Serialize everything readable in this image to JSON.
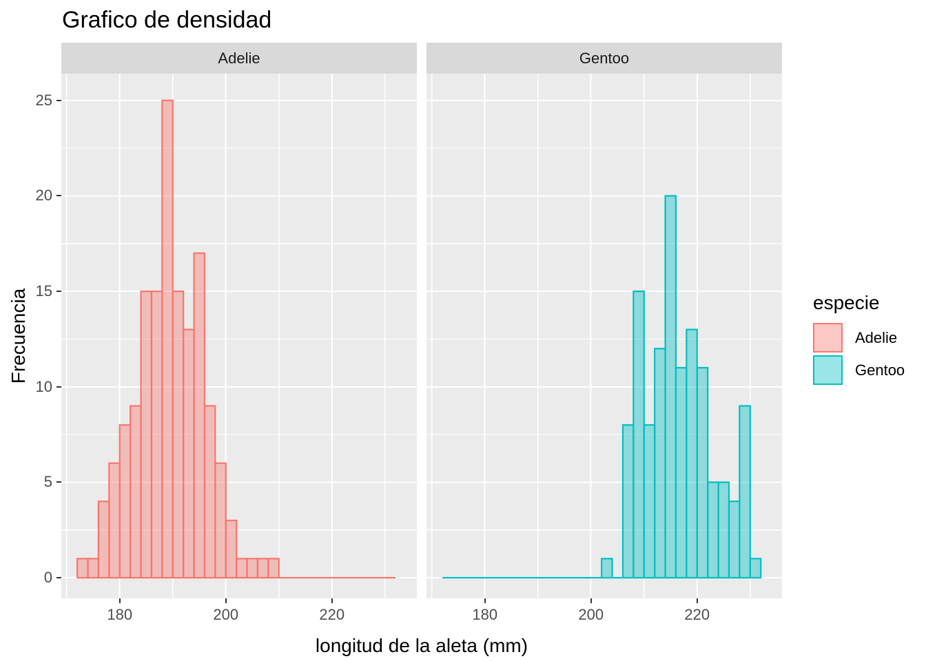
{
  "title": "Grafico de densidad",
  "axes": {
    "x": {
      "title": "longitud de la aleta (mm)"
    },
    "y": {
      "title": "Frecuencia"
    }
  },
  "legend": {
    "title": "especie",
    "entries": [
      {
        "label": "Adelie",
        "stroke": "#F8766D",
        "fill": "rgba(248,118,109,0.4)"
      },
      {
        "label": "Gentoo",
        "stroke": "#00BFC4",
        "fill": "rgba(0,191,196,0.4)"
      }
    ]
  },
  "colors": {
    "panel_bg": "#EBEBEB",
    "strip_bg": "#D9D9D9",
    "gridline": "#FFFFFF",
    "tick_mark": "#333333",
    "tick_label": "#4D4D4D",
    "adelie_stroke": "#F8766D",
    "adelie_fill": "rgba(248,118,109,0.4)",
    "gentoo_stroke": "#00BFC4",
    "gentoo_fill": "rgba(0,191,196,0.4)"
  },
  "chart_data": {
    "type": "bar",
    "subtype": "faceted-histogram",
    "title": "Grafico de densidad",
    "xlabel": "longitud de la aleta (mm)",
    "ylabel": "Frecuencia",
    "binwidth": 2,
    "x_domain": [
      169,
      236
    ],
    "y_domain": [
      -1.08,
      26.4
    ],
    "ylim": [
      0,
      25
    ],
    "x_major_ticks": [
      180,
      200,
      220
    ],
    "x_minor_ticks": [
      170,
      190,
      210,
      230
    ],
    "y_major_ticks": [
      0,
      5,
      10,
      15,
      20,
      25
    ],
    "y_minor_ticks": [
      2.5,
      7.5,
      12.5,
      17.5,
      22.5
    ],
    "legend_position": "right",
    "grid": true,
    "facets": [
      {
        "label": "Adelie",
        "series": "Adelie",
        "bin_start": 172,
        "bin_edges_note": "bins of width 2 mm from 172 to 210",
        "counts": [
          1,
          1,
          4,
          6,
          8,
          9,
          15,
          15,
          25,
          15,
          13,
          17,
          9,
          6,
          3,
          1,
          1,
          1,
          1
        ],
        "zero_segments": [
          [
            210,
            232
          ]
        ],
        "stroke": "#F8766D",
        "fill": "rgba(248,118,109,0.4)"
      },
      {
        "label": "Gentoo",
        "series": "Gentoo",
        "bin_start": 202,
        "bin_edges_note": "bins of width 2 mm from 202 to 232",
        "counts": [
          1,
          0,
          8,
          15,
          8,
          12,
          20,
          11,
          13,
          11,
          5,
          5,
          4,
          9,
          1
        ],
        "zero_segments": [
          [
            172,
            202
          ],
          [
            204,
            206
          ]
        ],
        "stroke": "#00BFC4",
        "fill": "rgba(0,191,196,0.4)"
      }
    ]
  }
}
